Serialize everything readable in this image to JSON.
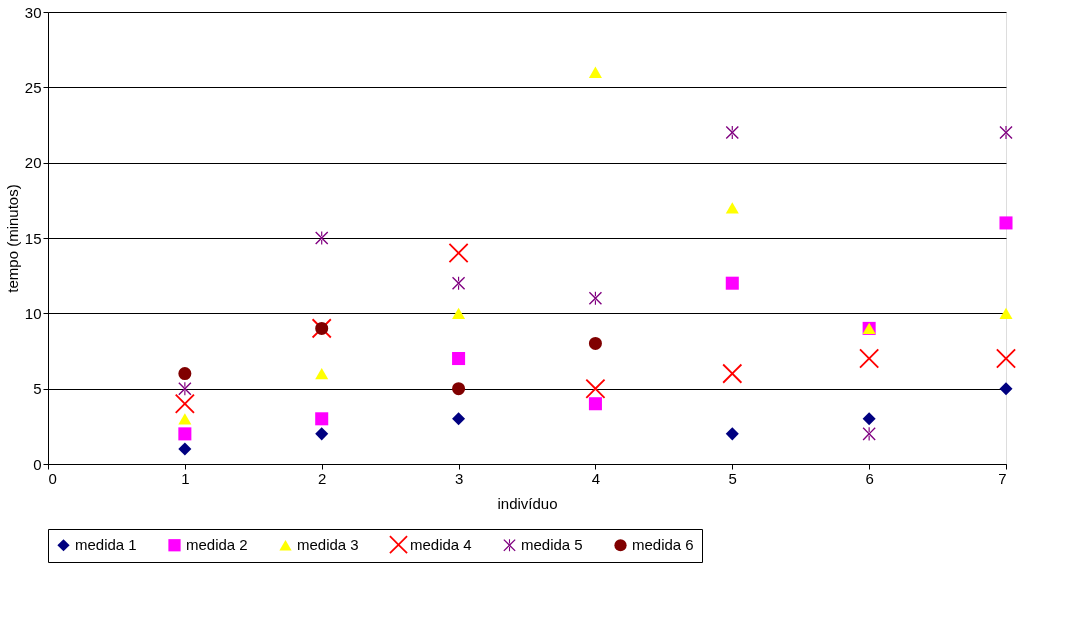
{
  "chart_data": {
    "type": "scatter",
    "xlabel": "indivíduo",
    "ylabel": "tempo (minutos)",
    "x": [
      1,
      2,
      3,
      4,
      5,
      6,
      7
    ],
    "xlim": [
      0,
      7
    ],
    "xticks": [
      0,
      1,
      2,
      3,
      4,
      5,
      6,
      7
    ],
    "ylim": [
      0,
      30
    ],
    "yticks": [
      0,
      5,
      10,
      15,
      20,
      25,
      30
    ],
    "grid": "y",
    "legend": "bottom",
    "series": [
      {
        "name": "medida 1",
        "color": "#000080",
        "marker": "diamond",
        "values": [
          1,
          2,
          3,
          null,
          2,
          3,
          5
        ]
      },
      {
        "name": "medida 2",
        "color": "#ff00ff",
        "marker": "square",
        "values": [
          2,
          3,
          7,
          4,
          12,
          9,
          16
        ]
      },
      {
        "name": "medida 3",
        "color": "#ffff00",
        "marker": "triangle",
        "values": [
          3,
          6,
          10,
          26,
          17,
          9,
          10
        ]
      },
      {
        "name": "medida 4",
        "color": "#ff0000",
        "marker": "cross",
        "values": [
          4,
          9,
          14,
          5,
          6,
          7,
          7
        ]
      },
      {
        "name": "medida 5",
        "color": "#800080",
        "marker": "star",
        "values": [
          5,
          15,
          12,
          11,
          22,
          2,
          22
        ]
      },
      {
        "name": "medida 6",
        "color": "#800000",
        "marker": "circle",
        "values": [
          6,
          9,
          5,
          8,
          null,
          null,
          null
        ]
      }
    ]
  }
}
